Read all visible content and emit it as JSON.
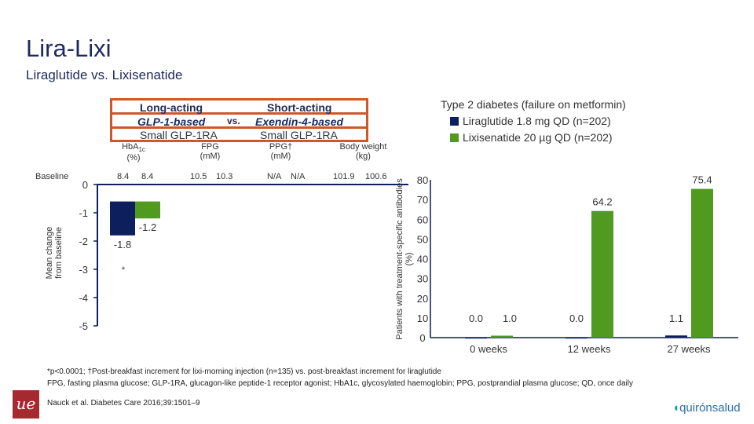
{
  "header": {
    "title": "Lira-Lixi",
    "subtitle": "Liraglutide vs. Lixisenatide"
  },
  "comparison": {
    "left": {
      "line1": "Long-acting",
      "line2": "GLP-1-based",
      "line3": "Small GLP-1RA"
    },
    "vs": "vs.",
    "right": {
      "line1": "Short-acting",
      "line2": "Exendin-4-based",
      "line3": "Small GLP-1RA"
    }
  },
  "parameters": [
    {
      "label": "HbA1c",
      "sub": "1c",
      "unit": "(%)",
      "baseline": [
        "8.4",
        "8.4"
      ]
    },
    {
      "label": "FPG",
      "unit": "(mM)",
      "baseline": [
        "10.5",
        "10.3"
      ]
    },
    {
      "label": "PPG†",
      "unit": "(mM)",
      "baseline": [
        "N/A",
        "N/A"
      ]
    },
    {
      "label": "Body weight",
      "unit": "(kg)",
      "baseline": [
        "101.9",
        "100.6"
      ]
    }
  ],
  "baseline_label": "Baseline",
  "legend": {
    "title": "Type 2 diabetes (failure on metformin)",
    "items": [
      {
        "label": "Liraglutide 1.8 mg QD (n=202)",
        "color": "#0d1f5c"
      },
      {
        "label": "Lixisenatide 20 µg QD (n=202)",
        "color": "#4f9a1f"
      }
    ]
  },
  "chart_data": [
    {
      "type": "bar",
      "ylabel": "Mean change from baseline",
      "ylim": [
        -5,
        0
      ],
      "yticks": [
        "0",
        "-1",
        "-2",
        "-3",
        "-4",
        "-5"
      ],
      "categories": [
        "HbA1c"
      ],
      "series": [
        {
          "name": "Liraglutide 1.8 mg QD (n=202)",
          "values": [
            -1.8
          ],
          "labels": [
            "-1.8"
          ],
          "color": "#0d1f5c"
        },
        {
          "name": "Lixisenatide 20 µg QD (n=202)",
          "values": [
            -1.2
          ],
          "labels": [
            "-1.2"
          ],
          "color": "#4f9a1f"
        }
      ],
      "annotation": "*"
    },
    {
      "type": "bar",
      "ylabel": "Patients with treatment-specific antibodies (%)",
      "ylim": [
        0,
        80
      ],
      "yticks": [
        "0",
        "10",
        "20",
        "30",
        "40",
        "50",
        "60",
        "70",
        "80"
      ],
      "categories": [
        "0 weeks",
        "12 weeks",
        "27 weeks"
      ],
      "series": [
        {
          "name": "Liraglutide 1.8 mg QD (n=202)",
          "values": [
            0.0,
            0.0,
            1.1
          ],
          "labels": [
            "0.0",
            "0.0",
            "1.1"
          ],
          "color": "#0d1f5c"
        },
        {
          "name": "Lixisenatide 20 µg QD (n=202)",
          "values": [
            1.0,
            64.2,
            75.4
          ],
          "labels": [
            "1.0",
            "64.2",
            "75.4"
          ],
          "color": "#4f9a1f"
        }
      ]
    }
  ],
  "footnotes": {
    "line1": "*p<0.0001; †Post-breakfast increment for lixi-morning injection (n=135) vs. post-breakfast increment for liraglutide",
    "line2": "FPG, fasting plasma glucose; GLP-1RA, glucagon-like peptide-1 receptor agonist; HbA1c, glycosylated haemoglobin; PPG, postprandial plasma glucose; QD, once daily",
    "line3": "Nauck et al. Diabetes Care 2016;39:1501–9"
  },
  "logos": {
    "left": "ue",
    "right": "quirónsalud"
  }
}
